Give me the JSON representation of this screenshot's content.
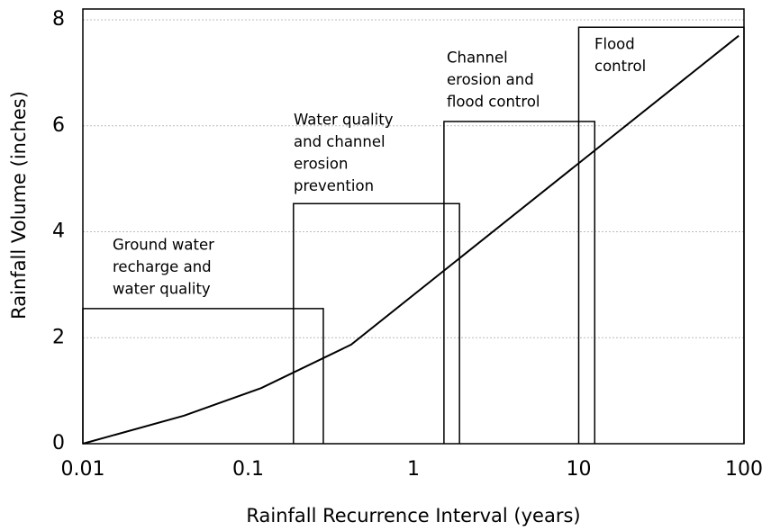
{
  "chart_data": {
    "type": "line",
    "x_label": "Rainfall Recurrence Interval (years)",
    "y_label": "Rainfall Volume (inches)",
    "x_scale": "log",
    "xlim": [
      0.01,
      100
    ],
    "xticks": [
      0.01,
      0.1,
      1,
      10,
      100
    ],
    "ylim": [
      0,
      8
    ],
    "yticks": [
      0,
      2,
      4,
      6,
      8
    ],
    "grid": true,
    "series": [
      {
        "color": "#000000",
        "x": [
          0.01,
          0.041,
          0.12,
          0.42,
          93
        ],
        "values": [
          0,
          0.53,
          1.05,
          1.87,
          7.7
        ]
      }
    ],
    "zones": [
      {
        "label": [
          "Ground water",
          "recharge and",
          "water quality"
        ],
        "x": [
          0.01,
          0.285
        ],
        "value": 2.55
      },
      {
        "label": [
          "Water quality",
          "and channel",
          "erosion",
          "prevention"
        ],
        "x": [
          0.188,
          1.9
        ],
        "value": 4.53
      },
      {
        "label": [
          "Channel",
          "erosion and",
          "flood control"
        ],
        "x": [
          1.53,
          12.5
        ],
        "value": 6.08
      },
      {
        "label": [
          "Flood",
          "control"
        ],
        "x": [
          10,
          100
        ],
        "value": 7.86
      }
    ]
  }
}
